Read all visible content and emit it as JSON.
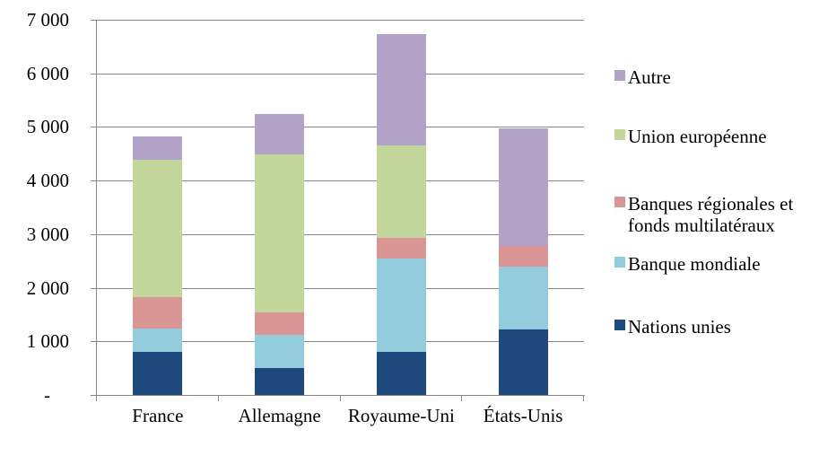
{
  "chart_data": {
    "type": "bar",
    "stacked": true,
    "title": "",
    "xlabel": "",
    "ylabel": "",
    "categories": [
      "France",
      "Allemagne",
      "Royaume-Uni",
      "États-Unis"
    ],
    "series": [
      {
        "name": "Nations unies",
        "color": "#1F497D",
        "values": [
          800,
          500,
          800,
          1220
        ]
      },
      {
        "name": "Banque mondiale",
        "color": "#93CDDD",
        "values": [
          440,
          620,
          1750,
          1180
        ]
      },
      {
        "name": "Banques régionales et fonds multilatéraux",
        "color": "#D99694",
        "values": [
          580,
          420,
          380,
          380
        ]
      },
      {
        "name": "Union européenne",
        "color": "#C3D69B",
        "values": [
          2560,
          2950,
          1730,
          0
        ]
      },
      {
        "name": "Autre",
        "color": "#B3A2C7",
        "values": [
          440,
          750,
          2070,
          2200
        ]
      }
    ],
    "totals": [
      4820,
      5240,
      6730,
      4980
    ],
    "ylim": [
      0,
      7000
    ],
    "ytick_step": 1000,
    "ytick_labels": [
      "-",
      "1 000",
      "2 000",
      "3 000",
      "4 000",
      "5 000",
      "6 000",
      "7 000"
    ],
    "grid": true,
    "legend_position": "right",
    "legend": [
      {
        "label": "Autre",
        "lines": [
          "Autre"
        ],
        "color": "#B3A2C7"
      },
      {
        "label": "Union européenne",
        "lines": [
          "Union européenne"
        ],
        "color": "#C3D69B"
      },
      {
        "label": "Banques régionales et fonds multilatéraux",
        "lines": [
          "Banques régionales et",
          "fonds multilatéraux"
        ],
        "color": "#D99694"
      },
      {
        "label": "Banque mondiale",
        "lines": [
          "Banque mondiale"
        ],
        "color": "#93CDDD"
      },
      {
        "label": "Nations unies",
        "lines": [
          "Nations unies"
        ],
        "color": "#1F497D"
      }
    ],
    "colors": {
      "axis": "#878787",
      "grid": "#878787",
      "text": "#000000",
      "background": "#FFFFFF"
    }
  }
}
